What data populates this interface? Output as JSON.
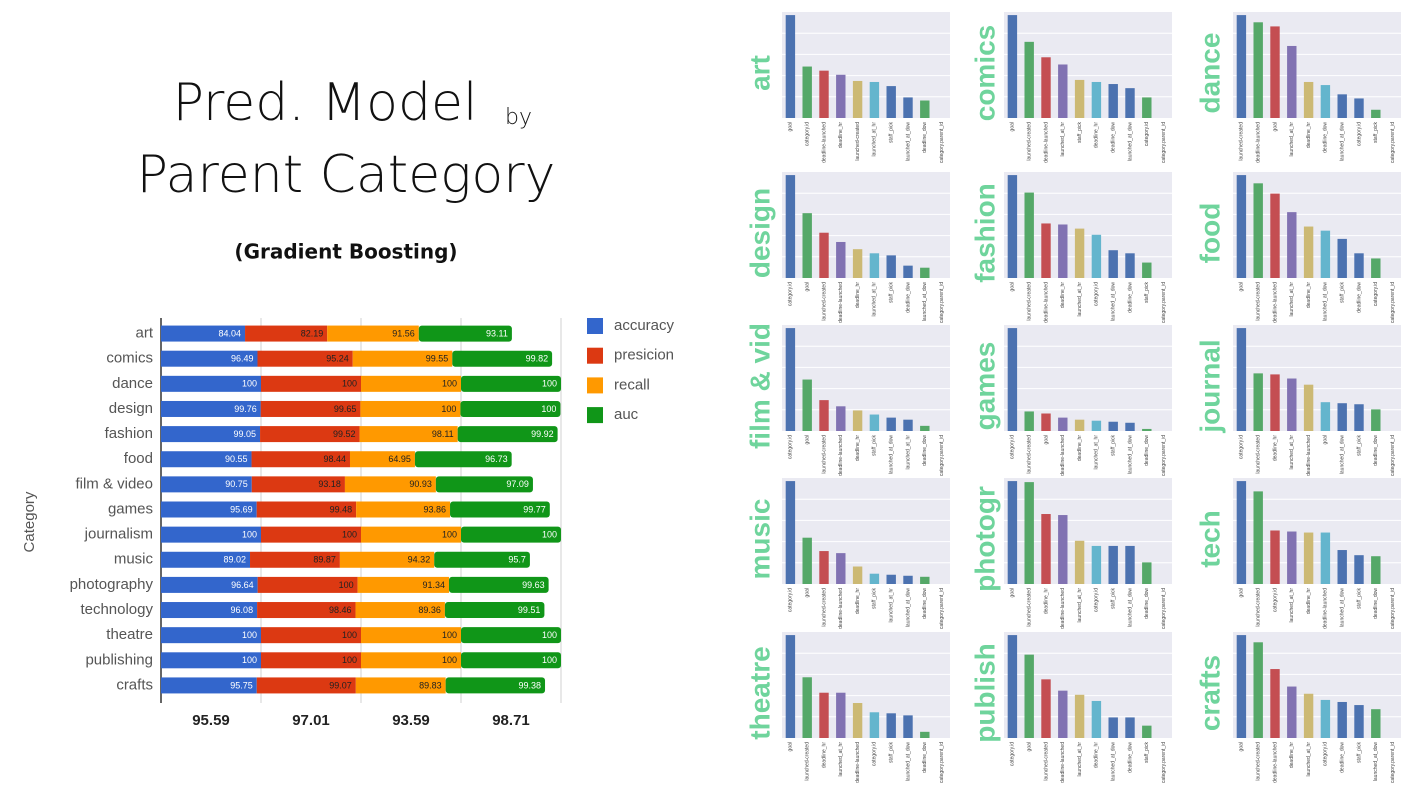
{
  "chart_data": [
    {
      "type": "bar",
      "orientation": "horizontal",
      "stacked": true,
      "title": [
        "Pred. Model",
        "by",
        "Parent Category"
      ],
      "subtitle": "(Gradient Boosting)",
      "y_label": "Category",
      "categories": [
        "art",
        "comics",
        "dance",
        "design",
        "fashion",
        "food",
        "film & video",
        "games",
        "journalism",
        "music",
        "photography",
        "technology",
        "theatre",
        "publishing",
        "crafts"
      ],
      "series": [
        {
          "name": "accuracy",
          "color": "#3366cc",
          "values": [
            84.04,
            96.49,
            100,
            99.76,
            99.05,
            90.55,
            90.75,
            95.69,
            100,
            89.02,
            96.64,
            96.08,
            100,
            100,
            95.75
          ]
        },
        {
          "name": "presicion",
          "color": "#dc3912",
          "values": [
            82.19,
            95.24,
            100,
            99.65,
            99.52,
            98.44,
            93.18,
            99.48,
            100,
            89.87,
            100,
            98.46,
            100,
            100,
            99.07
          ]
        },
        {
          "name": "recall",
          "color": "#ff9900",
          "values": [
            91.56,
            99.55,
            100,
            100,
            98.11,
            64.95,
            90.93,
            93.86,
            100,
            94.32,
            91.34,
            89.36,
            100,
            100,
            89.83
          ]
        },
        {
          "name": "auc",
          "color": "#109618",
          "values": [
            93.11,
            99.82,
            100,
            100,
            99.92,
            96.73,
            97.09,
            99.77,
            100,
            95.7,
            99.63,
            99.51,
            100,
            100,
            99.38
          ]
        }
      ],
      "column_means": [
        95.59,
        97.01,
        93.59,
        98.71
      ],
      "xlim": [
        0,
        400
      ],
      "xticks": [
        0,
        100,
        200,
        300,
        400
      ],
      "grid": true,
      "legend": "right"
    },
    {
      "type": "bar",
      "title": "art",
      "ylim": [
        0,
        1.03
      ],
      "colors": [
        "#4c72b0",
        "#55a868",
        "#c44e52",
        "#8172b2",
        "#ccb974",
        "#64b5cd",
        "#4c72b0",
        "#4c72b0",
        "#55a868",
        "#55a868"
      ],
      "categories": [
        "goal",
        "category.id",
        "deadline-launched",
        "deadline_hr",
        "launched-created",
        "launched_at_hr",
        "staff_pick",
        "launched_at_dow",
        "deadline_dow",
        "category.parent_id"
      ],
      "values": [
        1.0,
        0.5,
        0.46,
        0.42,
        0.36,
        0.35,
        0.31,
        0.2,
        0.17,
        0
      ]
    },
    {
      "type": "bar",
      "title": "comics",
      "ylim": [
        0,
        1.03
      ],
      "colors": [
        "#4c72b0",
        "#55a868",
        "#c44e52",
        "#8172b2",
        "#ccb974",
        "#64b5cd",
        "#4c72b0",
        "#4c72b0",
        "#55a868",
        "#55a868"
      ],
      "categories": [
        "goal",
        "launched-created",
        "deadline-launched",
        "launched_at_hr",
        "staff_pick",
        "deadline_hr",
        "deadline_dow",
        "launched_at_dow",
        "category.id",
        "category.parent_id"
      ],
      "values": [
        1.0,
        0.74,
        0.59,
        0.52,
        0.37,
        0.35,
        0.33,
        0.29,
        0.2,
        0
      ]
    },
    {
      "type": "bar",
      "title": "dance",
      "ylim": [
        0,
        1.03
      ],
      "colors": [
        "#4c72b0",
        "#55a868",
        "#c44e52",
        "#8172b2",
        "#ccb974",
        "#64b5cd",
        "#4c72b0",
        "#4c72b0",
        "#55a868",
        "#55a868"
      ],
      "categories": [
        "launched-created",
        "deadline-launched",
        "goal",
        "launched_at_hr",
        "deadline_hr",
        "deadline_dow",
        "launched_at_dow",
        "category.id",
        "staff_pick",
        "category.parent_id"
      ],
      "values": [
        1.0,
        0.93,
        0.89,
        0.7,
        0.35,
        0.32,
        0.23,
        0.19,
        0.08,
        0
      ]
    },
    {
      "type": "bar",
      "title": "design",
      "ylim": [
        0,
        1.03
      ],
      "colors": [
        "#4c72b0",
        "#55a868",
        "#c44e52",
        "#8172b2",
        "#ccb974",
        "#64b5cd",
        "#4c72b0",
        "#4c72b0",
        "#55a868",
        "#55a868"
      ],
      "categories": [
        "category.id",
        "goal",
        "launched-created",
        "deadline-launched",
        "deadline_hr",
        "launched_at_hr",
        "staff_pick",
        "deadline_dow",
        "launched_at_dow",
        "category.parent_id"
      ],
      "values": [
        1.0,
        0.63,
        0.44,
        0.35,
        0.28,
        0.24,
        0.22,
        0.12,
        0.1,
        0
      ]
    },
    {
      "type": "bar",
      "title": "fashion",
      "ylim": [
        0,
        1.03
      ],
      "colors": [
        "#4c72b0",
        "#55a868",
        "#c44e52",
        "#8172b2",
        "#ccb974",
        "#64b5cd",
        "#4c72b0",
        "#4c72b0",
        "#55a868",
        "#55a868"
      ],
      "categories": [
        "goal",
        "launched-created",
        "deadline-launched",
        "deadline_hr",
        "launched_at_hr",
        "category.id",
        "launched_at_dow",
        "deadline_dow",
        "staff_pick",
        "category.parent_id"
      ],
      "values": [
        1.0,
        0.83,
        0.53,
        0.52,
        0.48,
        0.42,
        0.27,
        0.24,
        0.15,
        0
      ]
    },
    {
      "type": "bar",
      "title": "food",
      "ylim": [
        0,
        1.03
      ],
      "colors": [
        "#4c72b0",
        "#55a868",
        "#c44e52",
        "#8172b2",
        "#ccb974",
        "#64b5cd",
        "#4c72b0",
        "#4c72b0",
        "#55a868",
        "#55a868"
      ],
      "categories": [
        "goal",
        "launched-created",
        "deadline-launched",
        "launched_at_hr",
        "deadline_hr",
        "launched_at_dow",
        "staff_pick",
        "deadline_dow",
        "category.id",
        "category.parent_id"
      ],
      "values": [
        1.0,
        0.92,
        0.82,
        0.64,
        0.5,
        0.46,
        0.38,
        0.24,
        0.19,
        0
      ]
    },
    {
      "type": "bar",
      "title": "film & vid",
      "ylim": [
        0,
        1.03
      ],
      "colors": [
        "#4c72b0",
        "#55a868",
        "#c44e52",
        "#8172b2",
        "#ccb974",
        "#64b5cd",
        "#4c72b0",
        "#4c72b0",
        "#55a868",
        "#55a868"
      ],
      "categories": [
        "category.id",
        "goal",
        "launched-created",
        "deadline-launched",
        "deadline_hr",
        "staff_pick",
        "launched_at_dow",
        "launched_at_hr",
        "deadline_dow",
        "category.parent_id"
      ],
      "values": [
        1.0,
        0.5,
        0.3,
        0.24,
        0.2,
        0.16,
        0.13,
        0.11,
        0.05,
        0
      ]
    },
    {
      "type": "bar",
      "title": "games",
      "ylim": [
        0,
        1.03
      ],
      "colors": [
        "#4c72b0",
        "#55a868",
        "#c44e52",
        "#8172b2",
        "#ccb974",
        "#64b5cd",
        "#4c72b0",
        "#4c72b0",
        "#55a868",
        "#55a868"
      ],
      "categories": [
        "category.id",
        "launched-created",
        "goal",
        "deadline-launched",
        "deadline_hr",
        "launched_at_hr",
        "staff_pick",
        "launched_at_dow",
        "deadline_dow",
        "category.parent_id"
      ],
      "values": [
        1.0,
        0.19,
        0.17,
        0.13,
        0.11,
        0.1,
        0.09,
        0.08,
        0.02,
        0
      ]
    },
    {
      "type": "bar",
      "title": "journal",
      "ylim": [
        0,
        1.03
      ],
      "colors": [
        "#4c72b0",
        "#55a868",
        "#c44e52",
        "#8172b2",
        "#ccb974",
        "#64b5cd",
        "#4c72b0",
        "#4c72b0",
        "#55a868",
        "#55a868"
      ],
      "categories": [
        "category.id",
        "launched-created",
        "deadline_hr",
        "launched_at_hr",
        "deadline-launched",
        "goal",
        "launched_at_dow",
        "staff_pick",
        "deadline_dow",
        "category.parent_id"
      ],
      "values": [
        1.0,
        0.56,
        0.55,
        0.51,
        0.45,
        0.28,
        0.27,
        0.26,
        0.21,
        0
      ]
    },
    {
      "type": "bar",
      "title": "music",
      "ylim": [
        0,
        1.03
      ],
      "colors": [
        "#4c72b0",
        "#55a868",
        "#c44e52",
        "#8172b2",
        "#ccb974",
        "#64b5cd",
        "#4c72b0",
        "#4c72b0",
        "#55a868",
        "#55a868"
      ],
      "categories": [
        "category.id",
        "goal",
        "launched-created",
        "deadline-launched",
        "deadline_hr",
        "staff_pick",
        "launched_at_hr",
        "launched_at_dow",
        "deadline_dow",
        "category.parent_id"
      ],
      "values": [
        1.0,
        0.45,
        0.32,
        0.3,
        0.17,
        0.1,
        0.09,
        0.08,
        0.07,
        0
      ]
    },
    {
      "type": "bar",
      "title": "photogr",
      "ylim": [
        0,
        1.03
      ],
      "colors": [
        "#4c72b0",
        "#55a868",
        "#c44e52",
        "#8172b2",
        "#ccb974",
        "#64b5cd",
        "#4c72b0",
        "#4c72b0",
        "#55a868",
        "#55a868"
      ],
      "categories": [
        "goal",
        "launched-created",
        "deadline_hr",
        "deadline-launched",
        "launched_at_hr",
        "category.id",
        "staff_pick",
        "launched_at_dow",
        "deadline_dow",
        "category.parent_id"
      ],
      "values": [
        1.0,
        0.99,
        0.68,
        0.67,
        0.42,
        0.37,
        0.37,
        0.37,
        0.21,
        0
      ]
    },
    {
      "type": "bar",
      "title": "tech",
      "ylim": [
        0,
        1.03
      ],
      "colors": [
        "#4c72b0",
        "#55a868",
        "#c44e52",
        "#8172b2",
        "#ccb974",
        "#64b5cd",
        "#4c72b0",
        "#4c72b0",
        "#55a868",
        "#55a868"
      ],
      "categories": [
        "goal",
        "launched-created",
        "category.id",
        "launched_at_hr",
        "deadline_hr",
        "deadline-launched",
        "launched_at_dow",
        "staff_pick",
        "deadline_dow",
        "category.parent_id"
      ],
      "values": [
        1.0,
        0.9,
        0.52,
        0.51,
        0.5,
        0.5,
        0.33,
        0.28,
        0.27,
        0
      ]
    },
    {
      "type": "bar",
      "title": "theatre",
      "ylim": [
        0,
        1.03
      ],
      "colors": [
        "#4c72b0",
        "#55a868",
        "#c44e52",
        "#8172b2",
        "#ccb974",
        "#64b5cd",
        "#4c72b0",
        "#4c72b0",
        "#55a868",
        "#55a868"
      ],
      "categories": [
        "goal",
        "launched-created",
        "deadline_hr",
        "launched_at_hr",
        "deadline-launched",
        "category.id",
        "staff_pick",
        "launched_at_dow",
        "deadline_dow",
        "category.parent_id"
      ],
      "values": [
        1.0,
        0.59,
        0.44,
        0.44,
        0.34,
        0.25,
        0.24,
        0.22,
        0.06,
        0
      ]
    },
    {
      "type": "bar",
      "title": "publish",
      "ylim": [
        0,
        1.03
      ],
      "colors": [
        "#4c72b0",
        "#55a868",
        "#c44e52",
        "#8172b2",
        "#ccb974",
        "#64b5cd",
        "#4c72b0",
        "#4c72b0",
        "#55a868",
        "#55a868"
      ],
      "categories": [
        "category.id",
        "goal",
        "launched-created",
        "deadline-launched",
        "launched_at_hr",
        "deadline_hr",
        "launched_at_dow",
        "deadline_dow",
        "staff_pick",
        "category.parent_id"
      ],
      "values": [
        1.0,
        0.81,
        0.57,
        0.46,
        0.42,
        0.36,
        0.2,
        0.2,
        0.12,
        0
      ]
    },
    {
      "type": "bar",
      "title": "crafts",
      "ylim": [
        0,
        1.03
      ],
      "colors": [
        "#4c72b0",
        "#55a868",
        "#c44e52",
        "#8172b2",
        "#ccb974",
        "#64b5cd",
        "#4c72b0",
        "#4c72b0",
        "#55a868",
        "#55a868"
      ],
      "categories": [
        "goal",
        "launched-created",
        "deadline-launched",
        "deadline_hr",
        "launched_at_hr",
        "category.id",
        "deadline_dow",
        "staff_pick",
        "launched_at_dow",
        "category.parent_id"
      ],
      "values": [
        1.0,
        0.93,
        0.67,
        0.5,
        0.43,
        0.37,
        0.35,
        0.32,
        0.28,
        0
      ]
    }
  ]
}
